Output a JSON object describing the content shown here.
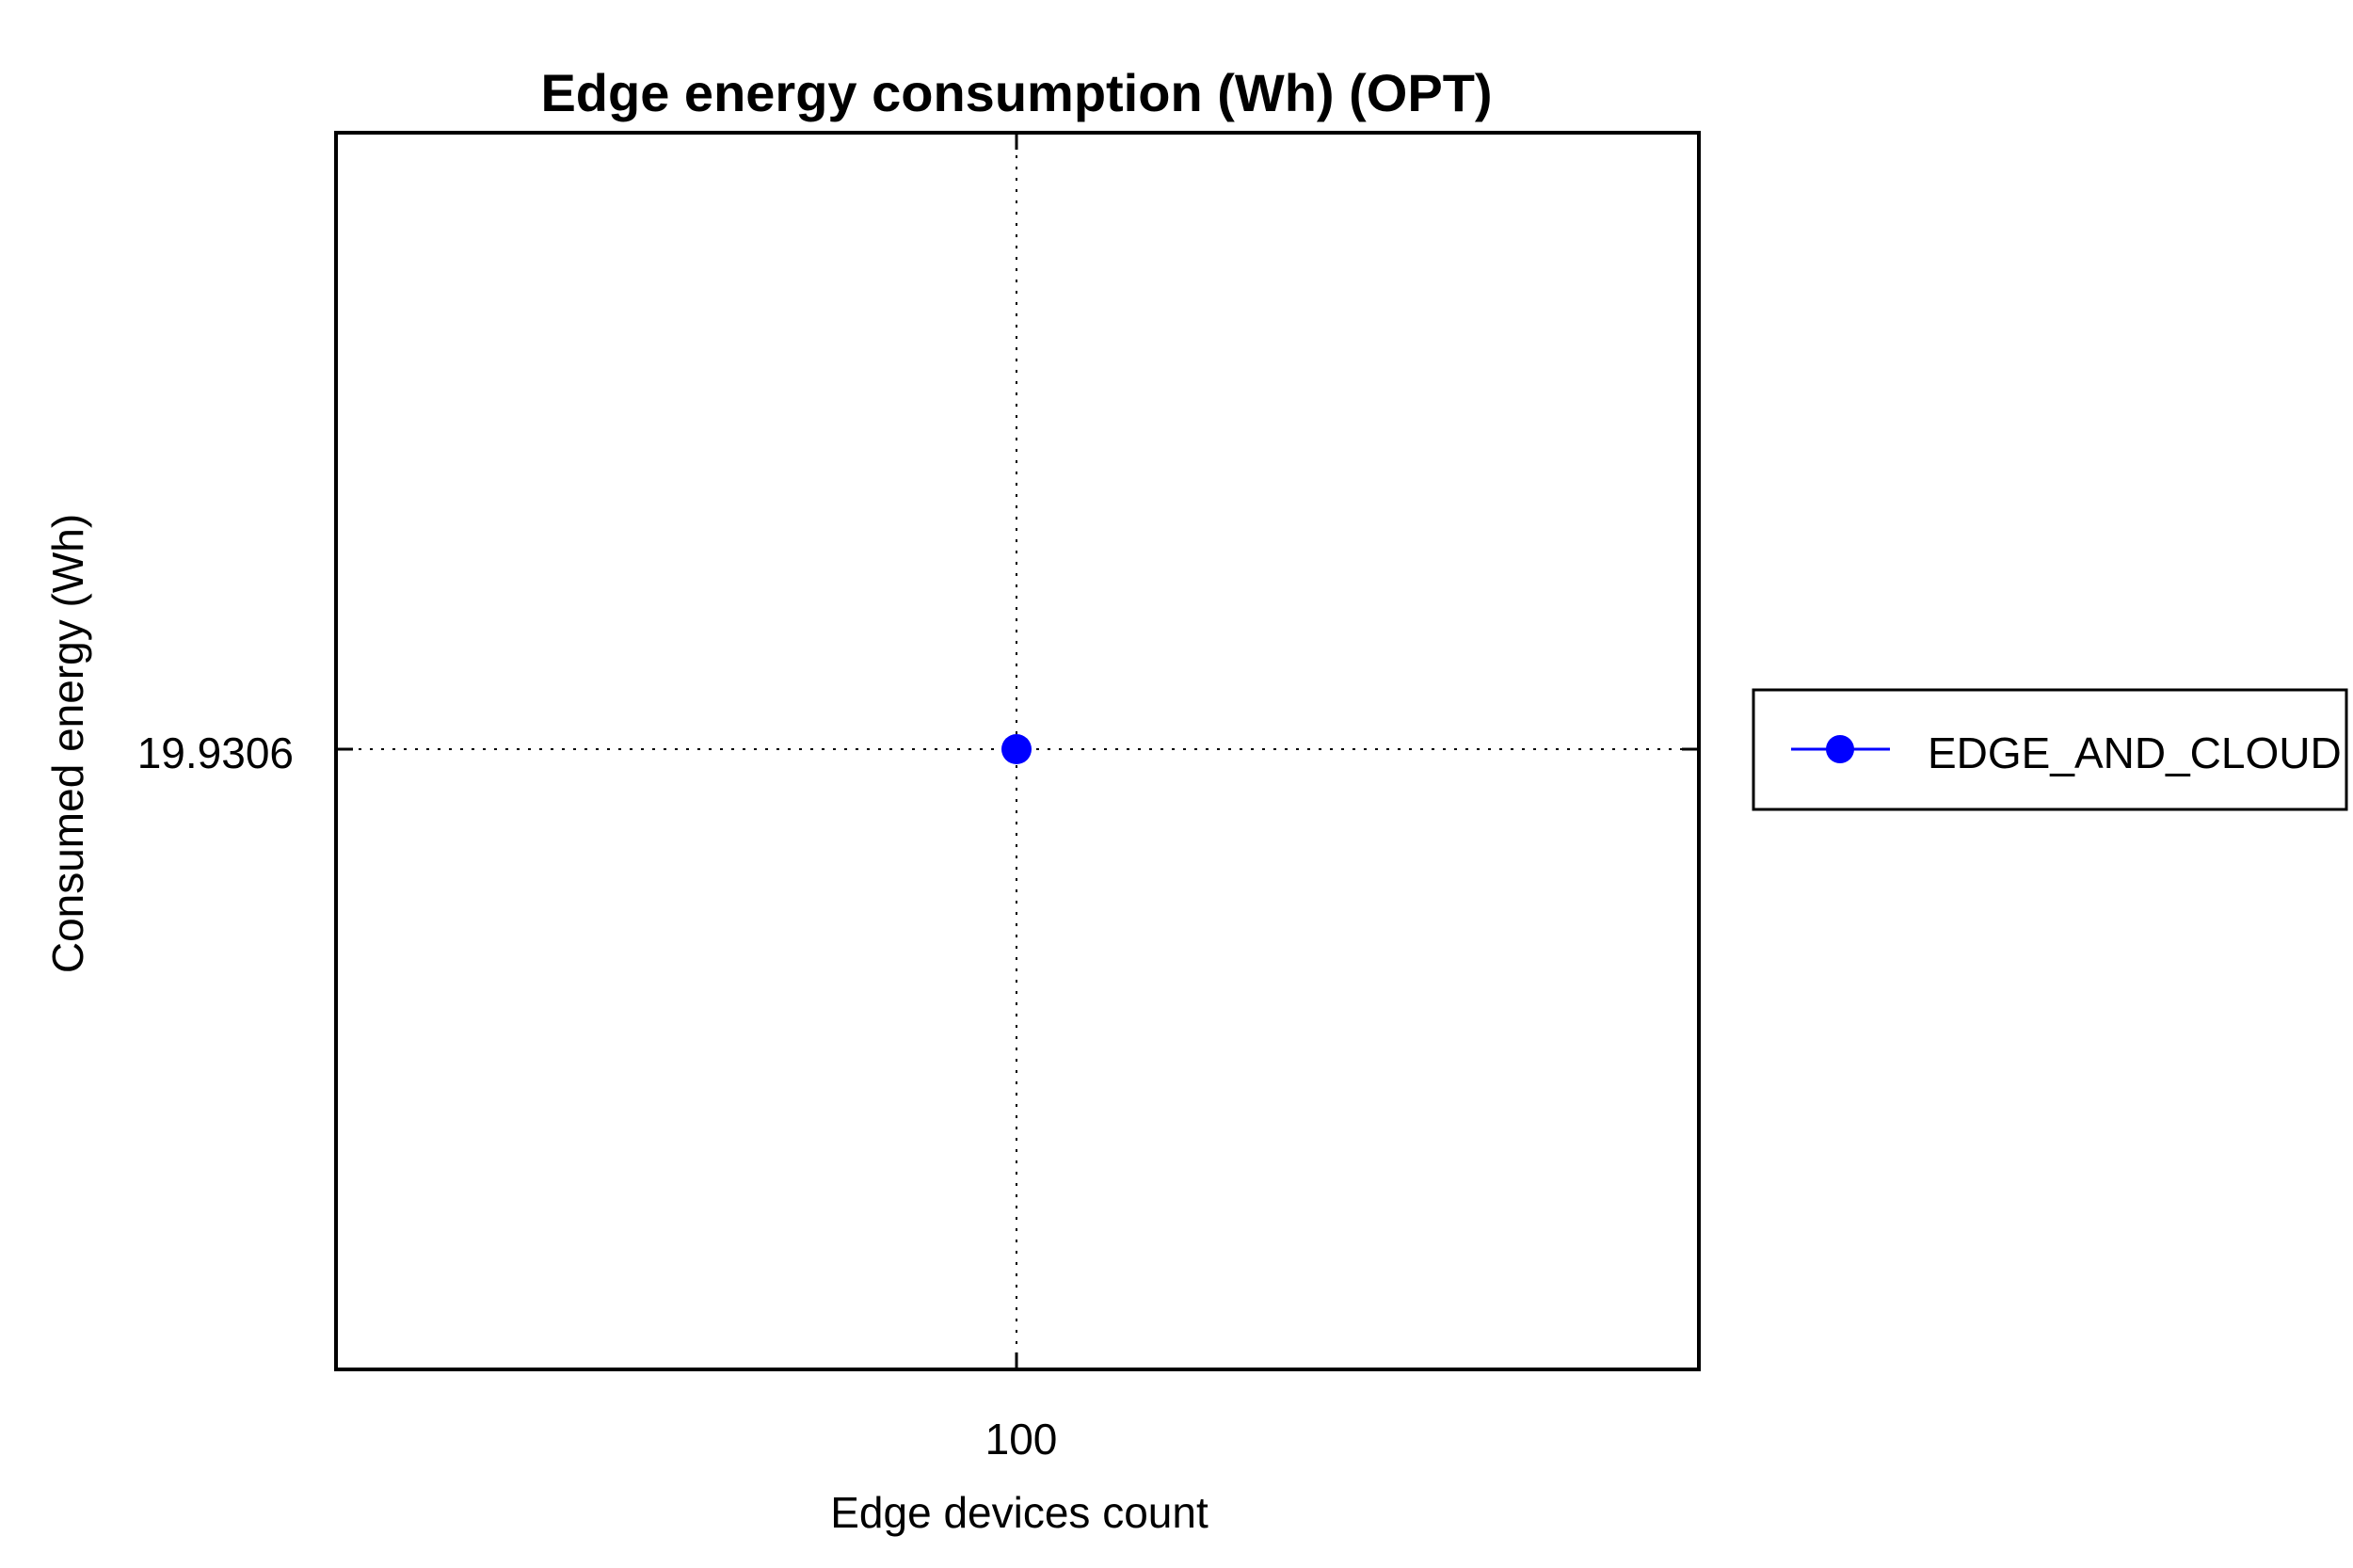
{
  "chart_data": {
    "type": "line",
    "title": "Edge energy consumption (Wh) (OPT)",
    "xlabel": "Edge devices count",
    "ylabel": "Consumed energy (Wh)",
    "x_ticks": [
      "100"
    ],
    "y_ticks": [
      "19.9306"
    ],
    "grid": true,
    "legend_position": "right",
    "series": [
      {
        "name": "EDGE_AND_CLOUD",
        "color": "#0000ff",
        "marker": "circle",
        "x": [
          100
        ],
        "y": [
          19.9306
        ]
      }
    ]
  }
}
